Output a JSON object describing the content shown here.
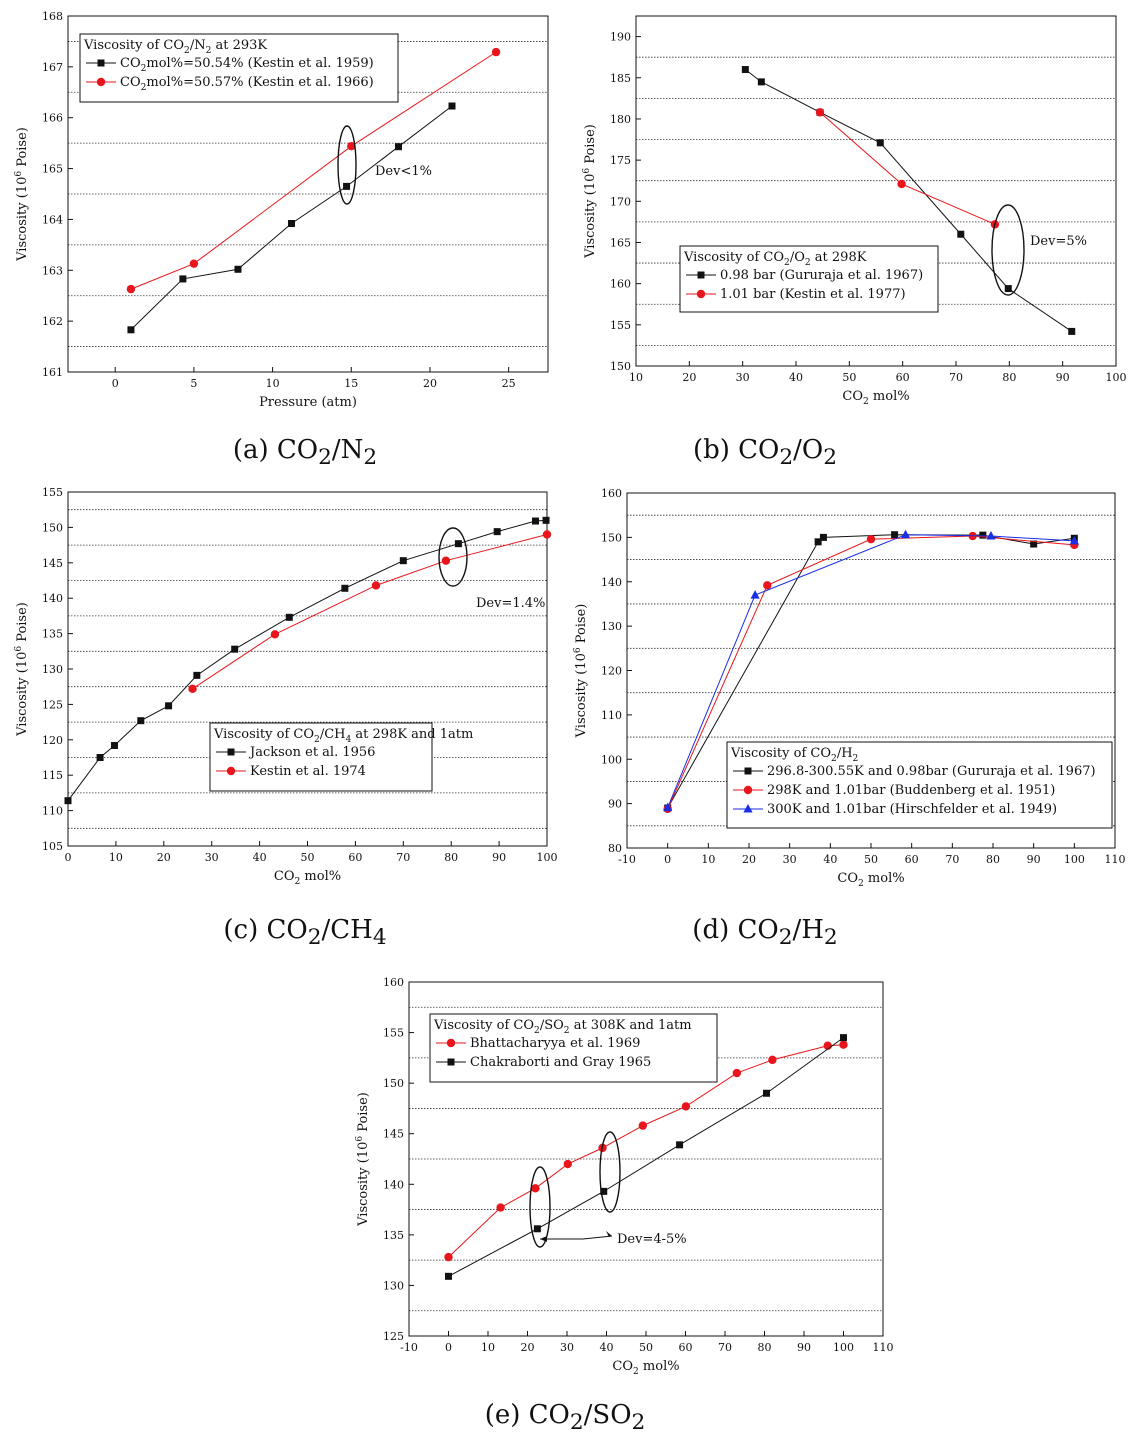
{
  "captions": {
    "a": {
      "prefix": "(a) CO",
      "sub1": "2",
      "mid": "/N",
      "sub2": "2"
    },
    "b": {
      "prefix": "(b) CO",
      "sub1": "2",
      "mid": "/O",
      "sub2": "2"
    },
    "c": {
      "prefix": "(c) CO",
      "sub1": "2",
      "mid": "/CH",
      "sub2": "4"
    },
    "d": {
      "prefix": "(d) CO",
      "sub1": "2",
      "mid": "/H",
      "sub2": "2"
    },
    "e": {
      "prefix": "(e) CO",
      "sub1": "2",
      "mid": "/SO",
      "sub2": "2"
    }
  },
  "colors": {
    "black": "#111111",
    "red": "#e8161c",
    "blue": "#1a2ee6",
    "grid": "#333333"
  },
  "chart_data": [
    {
      "id": "a",
      "type": "line",
      "xlabel": "Pressure (atm)",
      "ylabel": "Viscosity (10^6 Poise)",
      "xlim": [
        -3,
        27.5
      ],
      "ylim": [
        161,
        168
      ],
      "xticks": [
        0,
        5,
        10,
        15,
        20,
        25
      ],
      "yticks": [
        161,
        162,
        163,
        164,
        165,
        166,
        167,
        168
      ],
      "grid_y": [
        161.5,
        162.5,
        163.5,
        164.5,
        165.5,
        166.5,
        167.5
      ],
      "legend_title": "Viscosity of CO_2/N_2 at 293K",
      "series": [
        {
          "name": "CO_2mol%=50.54% (Kestin et al. 1959)",
          "color": "black",
          "marker": "square",
          "x": [
            1,
            4.3,
            7.8,
            11.2,
            14.7,
            18,
            21.4
          ],
          "y": [
            161.83,
            162.83,
            163.02,
            163.92,
            164.65,
            165.43,
            166.23
          ]
        },
        {
          "name": "CO_2mol%=50.57% (Kestin et al. 1966)",
          "color": "red",
          "marker": "circle",
          "x": [
            1,
            5,
            15,
            24.2
          ],
          "y": [
            162.63,
            163.13,
            165.44,
            167.29
          ]
        }
      ],
      "annotations": [
        {
          "text": "Dev<1%"
        }
      ]
    },
    {
      "id": "b",
      "type": "line",
      "xlabel": "CO_2 mol%",
      "ylabel": "Viscosity (10^6 Poise)",
      "xlim": [
        10,
        100
      ],
      "ylim": [
        150,
        192.5
      ],
      "xticks": [
        10,
        20,
        30,
        40,
        50,
        60,
        70,
        80,
        90,
        100
      ],
      "yticks": [
        150,
        155,
        160,
        165,
        170,
        175,
        180,
        185,
        190
      ],
      "grid_y": [
        152.5,
        157.5,
        162.5,
        167.5,
        172.5,
        177.5,
        182.5,
        187.5
      ],
      "legend_title": "Viscosity of CO_2/O_2 at 298K",
      "series": [
        {
          "name": "0.98 bar (Gururaja et al. 1967)",
          "color": "black",
          "marker": "square",
          "x": [
            30.5,
            33.5,
            44.5,
            55.8,
            70.9,
            79.8,
            91.7
          ],
          "y": [
            186,
            184.5,
            180.8,
            177.1,
            166,
            159.4,
            154.2
          ]
        },
        {
          "name": "1.01 bar (Kestin et al. 1977)",
          "color": "red",
          "marker": "circle",
          "x": [
            44.5,
            59.8,
            77.3
          ],
          "y": [
            180.8,
            172.1,
            167.2
          ]
        }
      ],
      "annotations": [
        {
          "text": "Dev=5%"
        }
      ]
    },
    {
      "id": "c",
      "type": "line",
      "xlabel": "CO_2 mol%",
      "ylabel": "Viscosity (10^6 Poise)",
      "xlim": [
        0,
        100
      ],
      "ylim": [
        105,
        155
      ],
      "xticks": [
        0,
        10,
        20,
        30,
        40,
        50,
        60,
        70,
        80,
        90,
        100
      ],
      "yticks": [
        105,
        110,
        115,
        120,
        125,
        130,
        135,
        140,
        145,
        150,
        155
      ],
      "grid_y": [
        107.5,
        112.5,
        117.5,
        122.5,
        127.5,
        132.5,
        137.5,
        142.5,
        147.5,
        152.5
      ],
      "legend_title": "Viscosity of CO_2/CH_4 at 298K and 1atm",
      "series": [
        {
          "name": "Jackson et al. 1956",
          "color": "black",
          "marker": "square",
          "x": [
            0,
            6.7,
            9.7,
            15.2,
            21,
            26.9,
            34.8,
            46.2,
            57.8,
            70,
            81.5,
            89.6,
            97.6,
            99.8
          ],
          "y": [
            111.4,
            117.5,
            119.2,
            122.7,
            124.8,
            129.1,
            132.8,
            137.3,
            141.4,
            145.3,
            147.7,
            149.4,
            150.9,
            151
          ]
        },
        {
          "name": "Kestin et al. 1974",
          "color": "red",
          "marker": "circle",
          "x": [
            26,
            43.2,
            64.3,
            78.9,
            100
          ],
          "y": [
            127.2,
            134.9,
            141.8,
            145.3,
            149
          ]
        }
      ],
      "annotations": [
        {
          "text": "Dev=1.4%"
        }
      ]
    },
    {
      "id": "d",
      "type": "line",
      "xlabel": "CO_2 mol%",
      "ylabel": "Viscosity (10^6 Poise)",
      "xlim": [
        -10,
        110
      ],
      "ylim": [
        80,
        160
      ],
      "xticks": [
        -10,
        0,
        10,
        20,
        30,
        40,
        50,
        60,
        70,
        80,
        90,
        100,
        110
      ],
      "yticks": [
        80,
        90,
        100,
        110,
        120,
        130,
        140,
        150,
        160
      ],
      "grid_y": [
        85,
        95,
        105,
        115,
        125,
        135,
        145,
        155
      ],
      "legend_title": "Viscosity of CO_2/H_2",
      "series": [
        {
          "name": "296.8-300.55K and 0.98bar (Gururaja et al. 1967)",
          "color": "black",
          "marker": "square",
          "x": [
            0,
            37,
            38.3,
            55.8,
            77.5,
            90,
            100
          ],
          "y": [
            89,
            149,
            150,
            150.6,
            150.5,
            148.5,
            149.8
          ]
        },
        {
          "name": "298K and 1.01bar (Buddenberg et al. 1951)",
          "color": "red",
          "marker": "circle",
          "x": [
            0,
            24.5,
            50,
            75,
            100
          ],
          "y": [
            88.8,
            139.2,
            149.6,
            150.3,
            148.3
          ]
        },
        {
          "name": "300K and 1.01bar (Hirschfelder et al. 1949)",
          "color": "blue",
          "marker": "triangle",
          "x": [
            0,
            21.5,
            58.5,
            79.5,
            100
          ],
          "y": [
            89.1,
            137,
            150.6,
            150.3,
            149.2
          ]
        }
      ],
      "annotations": []
    },
    {
      "id": "e",
      "type": "line",
      "xlabel": "CO_2 mol%",
      "ylabel": "Viscosity (10^6 Poise)",
      "xlim": [
        -10,
        110
      ],
      "ylim": [
        125,
        160
      ],
      "xticks": [
        -10,
        0,
        10,
        20,
        30,
        40,
        50,
        60,
        70,
        80,
        90,
        100,
        110
      ],
      "yticks": [
        125,
        130,
        135,
        140,
        145,
        150,
        155,
        160
      ],
      "grid_y": [
        127.5,
        132.5,
        137.5,
        142.5,
        147.5,
        152.5,
        157.5
      ],
      "legend_title": "Viscosity of CO_2/SO_2 at 308K and 1atm",
      "series": [
        {
          "name": "Bhattacharyya et al. 1969",
          "color": "red",
          "marker": "circle",
          "x": [
            0,
            13.2,
            22,
            30.2,
            39,
            49.2,
            60.1,
            73,
            82,
            96,
            100
          ],
          "y": [
            132.8,
            137.7,
            139.6,
            142,
            143.6,
            145.8,
            147.7,
            151,
            152.3,
            153.7,
            153.8
          ]
        },
        {
          "name": "Chakraborti and Gray 1965",
          "color": "black",
          "marker": "square",
          "x": [
            0,
            22.5,
            39.3,
            58.5,
            80.5,
            100
          ],
          "y": [
            130.9,
            135.6,
            139.3,
            143.9,
            149,
            154.5
          ]
        }
      ],
      "annotations": [
        {
          "text": "Dev=4-5%"
        }
      ]
    }
  ]
}
